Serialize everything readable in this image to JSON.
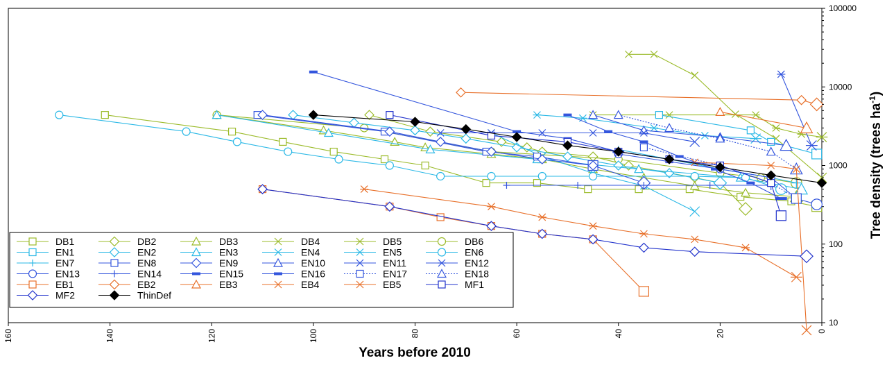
{
  "chart_data": {
    "type": "line",
    "title": "",
    "xlabel": "Years before 2010",
    "ylabel": "Tree density (trees ha",
    "ylabel_sup": "-1",
    "ylabel_close": ")",
    "xlim": [
      160,
      0
    ],
    "ylim": [
      10,
      100000
    ],
    "y_scale": "log",
    "x_ticks": [
      "160",
      "140",
      "120",
      "100",
      "80",
      "60",
      "40",
      "20",
      "0"
    ],
    "y_ticks": [
      "10",
      "100",
      "1000",
      "10000",
      "100000"
    ],
    "legend_position": "lower-left",
    "grid": false,
    "series": [
      {
        "name": "DB1",
        "color": "#9bbb2a",
        "marker": "square",
        "line": "solid",
        "x": [
          141,
          116,
          106,
          96,
          86,
          78,
          66,
          56,
          46,
          36,
          26,
          16,
          6,
          1
        ],
        "y": [
          4400,
          2700,
          2000,
          1500,
          1200,
          1000,
          600,
          600,
          500,
          500,
          500,
          400,
          350,
          300
        ]
      },
      {
        "name": "DB2",
        "color": "#9bbb2a",
        "marker": "diamond",
        "line": "solid",
        "x": [
          89,
          77,
          63,
          58,
          55,
          45,
          38,
          25,
          20,
          15
        ],
        "y": [
          4400,
          2700,
          2000,
          1700,
          1500,
          1300,
          1000,
          700,
          600,
          280
        ]
      },
      {
        "name": "DB3",
        "color": "#9bbb2a",
        "marker": "triangle",
        "line": "solid",
        "x": [
          119,
          98,
          84,
          78,
          65,
          55,
          45,
          35,
          25,
          15,
          5
        ],
        "y": [
          4400,
          2800,
          2000,
          1700,
          1400,
          1200,
          900,
          700,
          550,
          450,
          400
        ]
      },
      {
        "name": "DB4",
        "color": "#9bbb2a",
        "marker": "x",
        "line": "solid",
        "x": [
          38,
          33,
          25,
          17,
          9,
          0
        ],
        "y": [
          26000,
          26000,
          14000,
          4500,
          2200,
          700
        ]
      },
      {
        "name": "DB5",
        "color": "#9bbb2a",
        "marker": "star",
        "line": "solid",
        "x": [
          45,
          30,
          13,
          9,
          4,
          0
        ],
        "y": [
          4400,
          4400,
          4400,
          3000,
          2500,
          2300
        ]
      },
      {
        "name": "DB6",
        "color": "#9bbb2a",
        "marker": "circle",
        "line": "solid",
        "x": [
          119,
          90,
          65,
          40,
          20,
          12,
          5
        ],
        "y": [
          4400,
          3000,
          1500,
          1200,
          800,
          700,
          600
        ]
      },
      {
        "name": "EN1",
        "color": "#2ab8e6",
        "marker": "square",
        "line": "solid",
        "x": [
          32,
          14,
          10,
          1
        ],
        "y": [
          4400,
          2800,
          2000,
          1400
        ]
      },
      {
        "name": "EN2",
        "color": "#2ab8e6",
        "marker": "diamond",
        "line": "solid",
        "x": [
          104,
          92,
          80,
          70,
          60,
          50,
          40,
          30,
          20
        ],
        "y": [
          4400,
          3500,
          2800,
          2200,
          1700,
          1300,
          1000,
          800,
          600
        ]
      },
      {
        "name": "EN3",
        "color": "#2ab8e6",
        "marker": "triangle",
        "line": "solid",
        "x": [
          119,
          97,
          77,
          56,
          36,
          16,
          4
        ],
        "y": [
          4400,
          2600,
          1600,
          1200,
          900,
          700,
          500
        ]
      },
      {
        "name": "EN4",
        "color": "#2ab8e6",
        "marker": "x",
        "line": "solid",
        "x": [
          65,
          55,
          45,
          35,
          25
        ],
        "y": [
          2600,
          1300,
          800,
          550,
          260
        ]
      },
      {
        "name": "EN5",
        "color": "#2ab8e6",
        "marker": "star",
        "line": "solid",
        "x": [
          56,
          47,
          33,
          23,
          13
        ],
        "y": [
          4400,
          4000,
          3000,
          2400,
          2200
        ]
      },
      {
        "name": "EN6",
        "color": "#2ab8e6",
        "marker": "circle",
        "line": "solid",
        "x": [
          150,
          125,
          115,
          105,
          95,
          85,
          75,
          65,
          55,
          45,
          25,
          15,
          8
        ],
        "y": [
          4400,
          2700,
          2000,
          1500,
          1200,
          1000,
          730,
          730,
          730,
          730,
          730,
          700,
          500
        ]
      },
      {
        "name": "EN7",
        "color": "#2ab8e6",
        "marker": "plus",
        "line": "solid",
        "x": [
          40,
          30,
          20,
          10,
          5
        ],
        "y": [
          1600,
          1200,
          900,
          700,
          600
        ]
      },
      {
        "name": "EN8",
        "color": "#3355dd",
        "marker": "square",
        "line": "solid",
        "x": [
          111,
          86,
          66,
          56,
          45
        ],
        "y": [
          4400,
          2700,
          1500,
          1300,
          1000
        ]
      },
      {
        "name": "EN9",
        "color": "#3355dd",
        "marker": "diamond",
        "line": "solid",
        "x": [
          110,
          85,
          75,
          65,
          55,
          45,
          35
        ],
        "y": [
          4400,
          2700,
          2000,
          1500,
          1200,
          1000,
          600
        ]
      },
      {
        "name": "EN10",
        "color": "#3355dd",
        "marker": "triangle",
        "line": "solid",
        "x": [
          45,
          35,
          20,
          7
        ],
        "y": [
          4400,
          2800,
          2300,
          1800
        ]
      },
      {
        "name": "EN11",
        "color": "#3355dd",
        "marker": "x",
        "line": "solid",
        "x": [
          75,
          65,
          55,
          45,
          35,
          25
        ],
        "y": [
          2600,
          2600,
          2600,
          2600,
          2600,
          2000
        ]
      },
      {
        "name": "EN12",
        "color": "#3355dd",
        "marker": "star",
        "line": "solid",
        "x": [
          8,
          2
        ],
        "y": [
          14500,
          1800
        ]
      },
      {
        "name": "EN13",
        "color": "#3355dd",
        "marker": "circle",
        "line": "solid",
        "x": [
          40,
          20,
          10,
          5,
          1
        ],
        "y": [
          1400,
          900,
          700,
          380,
          320
        ]
      },
      {
        "name": "EN14",
        "color": "#3355dd",
        "marker": "plus",
        "line": "solid",
        "x": [
          62,
          48,
          35,
          22,
          10
        ],
        "y": [
          560,
          560,
          560,
          560,
          560
        ]
      },
      {
        "name": "EN15",
        "color": "#3355dd",
        "marker": "dash",
        "line": "solid",
        "x": [
          100,
          60,
          50,
          40
        ],
        "y": [
          15500,
          2700,
          2200,
          1500
        ]
      },
      {
        "name": "EN16",
        "color": "#3355dd",
        "marker": "dash",
        "line": "solid",
        "x": [
          50,
          42,
          35,
          28,
          21,
          14,
          8
        ],
        "y": [
          4400,
          2700,
          2000,
          1300,
          900,
          600,
          380
        ]
      },
      {
        "name": "EN17",
        "color": "#3355dd",
        "marker": "square",
        "line": "dotted",
        "x": [
          35,
          20,
          10,
          5
        ],
        "y": [
          1700,
          1000,
          600,
          380
        ]
      },
      {
        "name": "EN18",
        "color": "#3355dd",
        "marker": "triangle",
        "line": "dotted",
        "x": [
          40,
          30,
          20,
          10,
          5
        ],
        "y": [
          4400,
          3000,
          2200,
          1500,
          900
        ]
      },
      {
        "name": "EB1",
        "color": "#e8702a",
        "marker": "square",
        "line": "solid",
        "x": [
          110,
          85,
          75,
          65,
          55,
          45,
          35
        ],
        "y": [
          500,
          300,
          220,
          170,
          135,
          115,
          25
        ]
      },
      {
        "name": "EB2",
        "color": "#e8702a",
        "marker": "diamond",
        "line": "solid",
        "x": [
          71,
          4,
          1
        ],
        "y": [
          8500,
          6800,
          6000
        ]
      },
      {
        "name": "EB3",
        "color": "#e8702a",
        "marker": "triangle",
        "line": "solid",
        "x": [
          20,
          3
        ],
        "y": [
          4800,
          3000
        ]
      },
      {
        "name": "EB4",
        "color": "#e8702a",
        "marker": "x",
        "line": "solid",
        "x": [
          25,
          10,
          5,
          3
        ],
        "y": [
          1100,
          1000,
          900,
          8
        ]
      },
      {
        "name": "EB5",
        "color": "#e8702a",
        "marker": "star",
        "line": "solid",
        "x": [
          90,
          65,
          55,
          45,
          35,
          25,
          15,
          5
        ],
        "y": [
          500,
          300,
          220,
          170,
          135,
          115,
          90,
          38
        ]
      },
      {
        "name": "MF1",
        "color": "#2233cc",
        "marker": "square",
        "line": "solid",
        "x": [
          85,
          65,
          50,
          40,
          30,
          20,
          10,
          8
        ],
        "y": [
          4400,
          2400,
          2000,
          1500,
          1200,
          1000,
          600,
          230
        ]
      },
      {
        "name": "MF2",
        "color": "#2233cc",
        "marker": "diamond",
        "line": "solid",
        "x": [
          110,
          85,
          65,
          55,
          45,
          35,
          25,
          3
        ],
        "y": [
          500,
          300,
          170,
          135,
          115,
          90,
          80,
          70
        ]
      },
      {
        "name": "ThinDef",
        "color": "#000000",
        "marker": "filled-diamond",
        "line": "solid",
        "x": [
          100,
          80,
          70,
          60,
          50,
          40,
          30,
          20,
          10,
          0
        ],
        "y": [
          4400,
          3600,
          2900,
          2300,
          1800,
          1500,
          1200,
          950,
          750,
          600
        ]
      }
    ]
  }
}
